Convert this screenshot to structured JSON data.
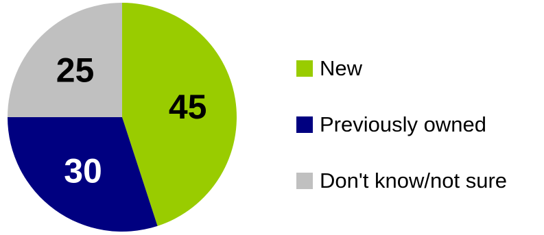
{
  "chart_data": {
    "type": "pie",
    "title": "",
    "slices": [
      {
        "label": "New",
        "value": 45,
        "color": "#99CC00",
        "label_color": "#000000"
      },
      {
        "label": "Previously owned",
        "value": 30,
        "color": "#000080",
        "label_color": "#ffffff"
      },
      {
        "label": "Don't know/not sure",
        "value": 25,
        "color": "#C0C0C0",
        "label_color": "#000000"
      }
    ],
    "start_angle_deg": 0,
    "direction": "clockwise",
    "legend": {
      "position": "right",
      "items": [
        "New",
        "Previously owned",
        "Don't know/not sure"
      ]
    }
  }
}
